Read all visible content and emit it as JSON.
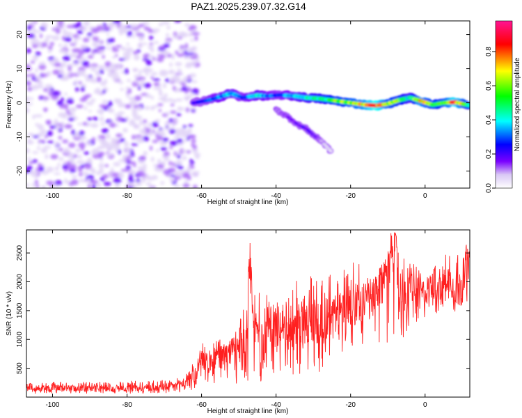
{
  "figure": {
    "title": "PAZ1.2025.239.07.32.G14"
  },
  "chart_data": [
    {
      "type": "heatmap",
      "title": "PAZ1.2025.239.07.32.G14",
      "xlabel": "Height of straight line (km)",
      "ylabel": "Frequency (Hz)",
      "xlim": [
        -107,
        12
      ],
      "ylim": [
        -25,
        24
      ],
      "xticks": [
        -100,
        -80,
        -60,
        -40,
        -20,
        0
      ],
      "yticks": [
        -20,
        -10,
        0,
        10,
        20
      ],
      "grid": false,
      "colorbar": {
        "label": "Normalized spectral amplitude",
        "range": [
          0,
          0.98
        ],
        "ticks": [
          0.0,
          0.2,
          0.4,
          0.6,
          0.8
        ],
        "colormap": [
          "#ffffff",
          "#d9c8f5",
          "#7a00ff",
          "#0000ff",
          "#00ffff",
          "#00ff00",
          "#ffff00",
          "#ff0000",
          "#ff1493"
        ]
      },
      "noise_region": {
        "x_range": [
          -107,
          -63
        ],
        "y_range": [
          -25,
          24
        ],
        "amplitude_range": [
          0.05,
          0.2
        ]
      },
      "signal_ridge": [
        {
          "x": -62,
          "y": 0.0,
          "a": 0.2
        },
        {
          "x": -58,
          "y": 0.8,
          "a": 0.3
        },
        {
          "x": -55,
          "y": 1.8,
          "a": 0.35
        },
        {
          "x": -52,
          "y": 2.8,
          "a": 0.4
        },
        {
          "x": -49,
          "y": 1.5,
          "a": 0.3
        },
        {
          "x": -45,
          "y": 2.2,
          "a": 0.4
        },
        {
          "x": -42,
          "y": 2.0,
          "a": 0.35
        },
        {
          "x": -39,
          "y": 2.3,
          "a": 0.3
        },
        {
          "x": -35,
          "y": 2.0,
          "a": 0.4
        },
        {
          "x": -32,
          "y": 1.5,
          "a": 0.45
        },
        {
          "x": -28,
          "y": 1.2,
          "a": 0.5
        },
        {
          "x": -24,
          "y": 0.6,
          "a": 0.6
        },
        {
          "x": -20,
          "y": 0.0,
          "a": 0.65
        },
        {
          "x": -16,
          "y": -0.6,
          "a": 0.75
        },
        {
          "x": -13,
          "y": -0.8,
          "a": 0.9
        },
        {
          "x": -10,
          "y": -0.3,
          "a": 0.65
        },
        {
          "x": -7,
          "y": 0.8,
          "a": 0.6
        },
        {
          "x": -4,
          "y": 1.5,
          "a": 0.45
        },
        {
          "x": -1,
          "y": 0.5,
          "a": 0.75
        },
        {
          "x": 2,
          "y": -0.6,
          "a": 0.6
        },
        {
          "x": 5,
          "y": 0.0,
          "a": 0.6
        },
        {
          "x": 8,
          "y": 0.2,
          "a": 0.85
        },
        {
          "x": 12,
          "y": -0.8,
          "a": 0.5
        }
      ],
      "secondary_branch": [
        {
          "x": -40,
          "y": -2.0,
          "a": 0.12
        },
        {
          "x": -37,
          "y": -4.0,
          "a": 0.15
        },
        {
          "x": -34,
          "y": -6.5,
          "a": 0.18
        },
        {
          "x": -32,
          "y": -7.5,
          "a": 0.2
        },
        {
          "x": -30,
          "y": -9.5,
          "a": 0.18
        },
        {
          "x": -28,
          "y": -11.0,
          "a": 0.12
        },
        {
          "x": -25,
          "y": -14.5,
          "a": 0.05
        }
      ]
    },
    {
      "type": "line",
      "xlabel": "Height of straight line (km)",
      "ylabel": "SNR (10 * v/v)",
      "xlim": [
        -107,
        12
      ],
      "ylim": [
        0,
        2900
      ],
      "xticks": [
        -100,
        -80,
        -60,
        -40,
        -20,
        0
      ],
      "yticks": [
        500,
        1000,
        1500,
        2000,
        2500
      ],
      "grid": false,
      "series": [
        {
          "color": "#ff2020",
          "x": [
            -107,
            -100,
            -90,
            -80,
            -75,
            -70,
            -66,
            -63,
            -61,
            -60,
            -58,
            -56,
            -54,
            -52,
            -50,
            -48,
            -47,
            -46,
            -45,
            -44,
            -42,
            -40,
            -38,
            -37,
            -36,
            -34,
            -32,
            -30,
            -28,
            -26,
            -24,
            -22,
            -20,
            -18,
            -16,
            -14,
            -12,
            -10,
            -9,
            -8,
            -7,
            -6,
            -5,
            -4,
            -2,
            0,
            2,
            4,
            6,
            8,
            10,
            11,
            12
          ],
          "values": [
            150,
            160,
            150,
            160,
            170,
            180,
            220,
            300,
            450,
            650,
            550,
            700,
            650,
            800,
            900,
            1050,
            2300,
            1100,
            1200,
            850,
            1300,
            1150,
            1300,
            1200,
            1250,
            1250,
            1300,
            1350,
            1350,
            1400,
            1400,
            1500,
            1600,
            1700,
            1650,
            1650,
            1900,
            2150,
            2650,
            2750,
            1800,
            1900,
            1500,
            1950,
            1800,
            1800,
            2000,
            1850,
            2100,
            1900,
            1950,
            2350,
            2250
          ],
          "envelope_low": [
            60,
            60,
            60,
            60,
            60,
            60,
            70,
            100,
            150,
            250,
            200,
            250,
            200,
            250,
            200,
            250,
            250,
            300,
            250,
            250,
            350,
            300,
            300,
            250,
            350,
            350,
            400,
            450,
            400,
            600,
            650,
            700,
            800,
            900,
            850,
            800,
            900,
            950,
            850,
            1100,
            1150,
            1000,
            1100,
            1200,
            1300,
            1350,
            1350,
            1450,
            1550,
            1450,
            1600,
            1600,
            1700
          ],
          "envelope_high": [
            270,
            270,
            260,
            280,
            290,
            300,
            340,
            520,
            750,
            950,
            850,
            1000,
            1050,
            1100,
            1300,
            2150,
            2680,
            1750,
            2050,
            1650,
            1850,
            1700,
            1750,
            1850,
            1850,
            2100,
            2000,
            2150,
            2300,
            2200,
            2050,
            2300,
            2400,
            2350,
            2100,
            2100,
            2250,
            2650,
            2880,
            2850,
            2600,
            2550,
            2400,
            2350,
            2300,
            2250,
            2350,
            2400,
            2500,
            2450,
            2500,
            2720,
            2500
          ]
        }
      ]
    }
  ]
}
